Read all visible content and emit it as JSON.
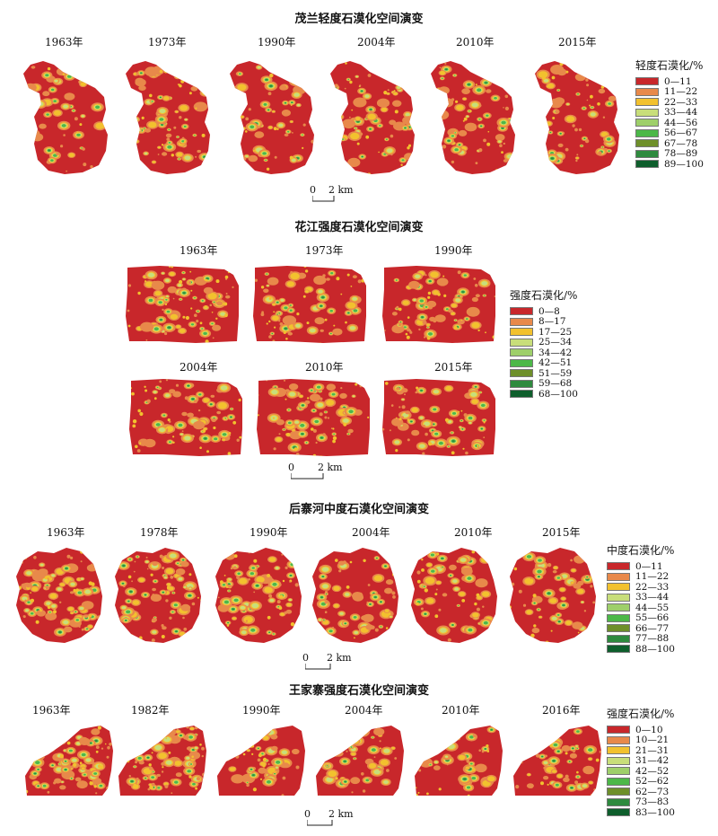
{
  "colors": [
    "#c8272b",
    "#e8894a",
    "#f2c12e",
    "#c8de7a",
    "#9ecf6a",
    "#4cb848",
    "#6e8f2a",
    "#2e8a3e",
    "#0e5e2c"
  ],
  "panels": [
    {
      "id": "maolan",
      "title": "茂兰轻度石漠化空间演变",
      "years": [
        "1963年",
        "1973年",
        "1990年",
        "2004年",
        "2010年",
        "2015年"
      ],
      "legend_title": "轻度石漠化/%",
      "legend": [
        "0—11",
        "11—22",
        "22—33",
        "33—44",
        "44—56",
        "56—67",
        "67—78",
        "78—89",
        "89—100"
      ],
      "scale": {
        "zero": "0",
        "dist": "2 km"
      }
    },
    {
      "id": "huajiang",
      "title": "花江强度石漠化空间演变",
      "years": [
        "1963年",
        "1973年",
        "1990年",
        "2004年",
        "2010年",
        "2015年"
      ],
      "legend_title": "强度石漠化/%",
      "legend": [
        "0—8",
        "8—17",
        "17—25",
        "25—34",
        "34—42",
        "42—51",
        "51—59",
        "59—68",
        "68—100"
      ],
      "scale": {
        "zero": "0",
        "dist": "2 km"
      }
    },
    {
      "id": "houzhaihe",
      "title": "后寨河中度石漠化空间演变",
      "years": [
        "1963年",
        "1978年",
        "1990年",
        "2004年",
        "2010年",
        "2015年"
      ],
      "legend_title": "中度石漠化/%",
      "legend": [
        "0—11",
        "11—22",
        "22—33",
        "33—44",
        "44—55",
        "55—66",
        "66—77",
        "77—88",
        "88—100"
      ],
      "scale": {
        "zero": "0",
        "dist": "2 km"
      }
    },
    {
      "id": "wangjiazhai",
      "title": "王家寨强度石漠化空间演变",
      "years": [
        "1963年",
        "1982年",
        "1990年",
        "2004年",
        "2010年",
        "2016年"
      ],
      "legend_title": "强度石漠化/%",
      "legend": [
        "0—10",
        "10—21",
        "21—31",
        "31—42",
        "42—52",
        "52—62",
        "62—73",
        "73—83",
        "83—100"
      ],
      "scale": {
        "zero": "0",
        "dist": "2 km"
      }
    }
  ]
}
